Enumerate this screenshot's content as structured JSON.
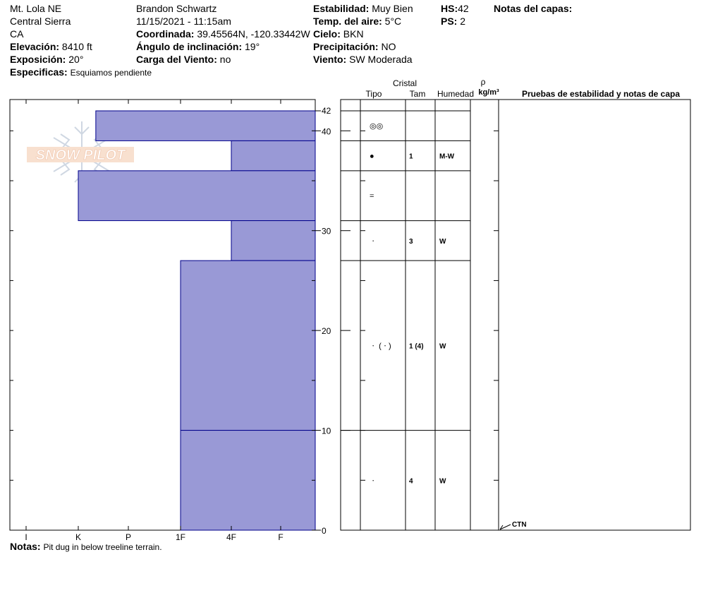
{
  "header": {
    "location": "Mt. Lola NE",
    "region": "Central Sierra",
    "state": "CA",
    "elevation_label": "Elevación:",
    "elevation_value": "8410 ft",
    "aspect_label": "Exposición:",
    "aspect_value": "20°",
    "specifics_label": "Especificas:",
    "specifics_value": "Esquiamos pendiente",
    "observer": "Brandon Schwartz",
    "datetime": "11/15/2021 - 11:15am",
    "coord_label": "Coordinada:",
    "coord_value": "39.45564N, -120.33442W",
    "slope_label": "Ángulo de inclinación:",
    "slope_value": "19°",
    "wind_load_label": "Carga del Viento:",
    "wind_load_value": "no",
    "stability_label": "Estabilidad:",
    "stability_value": "Muy Bien",
    "air_temp_label": "Temp. del aire:",
    "air_temp_value": "5°C",
    "sky_label": "Cielo:",
    "sky_value": "BKN",
    "precip_label": "Precipitación:",
    "precip_value": "NO",
    "wind_label": "Viento:",
    "wind_value": "SW Moderada",
    "hs_label": "HS:",
    "hs_value": "42",
    "ps_label": "PS:",
    "ps_value": "2",
    "layer_notes_label": "Notas del capas:"
  },
  "logo_text": "SNOW PILOT",
  "footer": {
    "notes_label": "Notas:",
    "notes_value": "Pit dug in below treeline terrain."
  },
  "table_headers": {
    "cristal": "Cristal",
    "tipo": "Tipo",
    "tam": "Tam",
    "humedad": "Humedad",
    "rho": "ρ",
    "density_unit": "kg/m³",
    "tests": "Pruebas de estabilidad y notas de capa"
  },
  "test_result": "CTN",
  "colors": {
    "bar_fill": "#9999d6",
    "bar_stroke": "#00008b"
  },
  "chart_data": {
    "type": "bar",
    "orientation": "horizontal",
    "title": "",
    "xlabel": "",
    "ylabel": "",
    "hardness_scale": [
      "I",
      "K",
      "P",
      "1F",
      "4F",
      "F"
    ],
    "ylim": [
      0,
      42
    ],
    "y_ticks": [
      0,
      10,
      20,
      30,
      40,
      42
    ],
    "grid": false,
    "layers": [
      {
        "top": 42,
        "bottom": 39,
        "hardness": "K+",
        "hardness_index": 1.35,
        "crystal": "◎◎",
        "size": "",
        "moisture": ""
      },
      {
        "top": 39,
        "bottom": 36,
        "hardness": "4F",
        "hardness_index": 4.0,
        "crystal": "●",
        "size": "1",
        "moisture": "M-W"
      },
      {
        "top": 36,
        "bottom": 31,
        "hardness": "K",
        "hardness_index": 1.0,
        "crystal": "=",
        "size": "",
        "moisture": ""
      },
      {
        "top": 31,
        "bottom": 27,
        "hardness": "4F",
        "hardness_index": 4.0,
        "crystal": "ㆍ",
        "size": "3",
        "moisture": "W"
      },
      {
        "top": 27,
        "bottom": 10,
        "hardness": "1F",
        "hardness_index": 3.0,
        "crystal": "ㆍ (ㆍ)",
        "size": "1 (4)",
        "moisture": "W"
      },
      {
        "top": 10,
        "bottom": 0,
        "hardness": "1F",
        "hardness_index": 3.0,
        "crystal": "ㆍ",
        "size": "4",
        "moisture": "W"
      }
    ],
    "tests": [
      {
        "height": 0,
        "result": "CTN"
      }
    ]
  }
}
